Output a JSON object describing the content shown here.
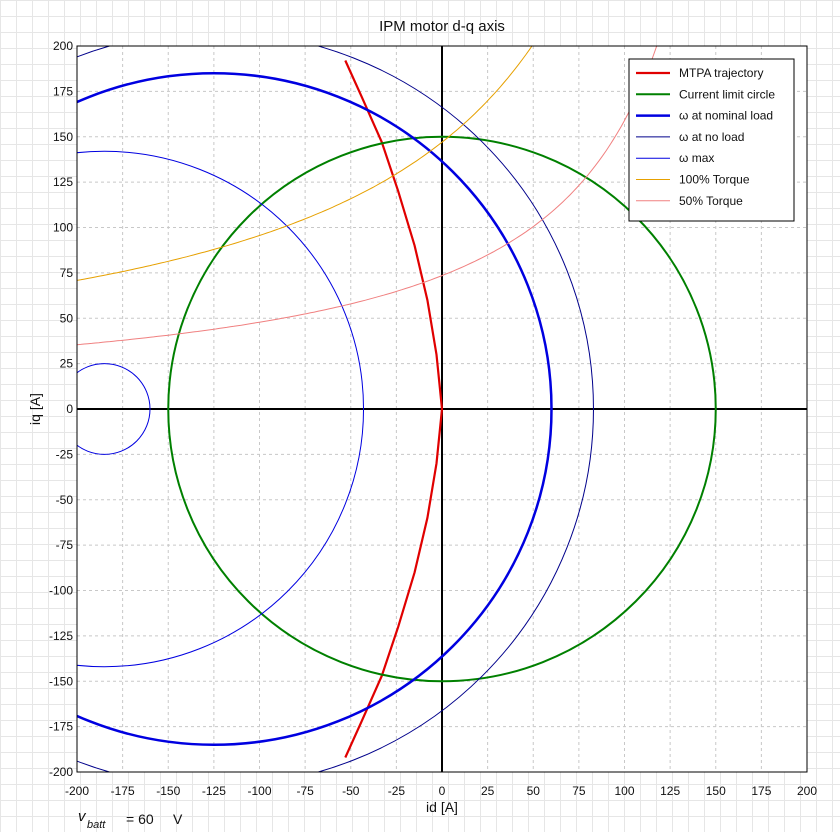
{
  "chart_data": {
    "type": "line",
    "title": "IPM motor d-q axis",
    "xlabel": "id [A]",
    "ylabel": "iq [A]",
    "xlim": [
      -200,
      200
    ],
    "ylim": [
      -200,
      200
    ],
    "xticks": [
      "-200",
      "-175",
      "-150",
      "-125",
      "-100",
      "-75",
      "-50",
      "-25",
      "0",
      "25",
      "50",
      "75",
      "100",
      "125",
      "150",
      "175",
      "200"
    ],
    "yticks": [
      "200",
      "175",
      "150",
      "125",
      "100",
      "75",
      "50",
      "25",
      "0",
      "-25",
      "-50",
      "-75",
      "-100",
      "-125",
      "-150",
      "-175",
      "-200"
    ],
    "grid": true,
    "legend_position": "top-right",
    "series": [
      {
        "name": "MTPA trajectory",
        "color": "#e00000",
        "kind": "curve",
        "points": [
          [
            -53,
            192
          ],
          [
            -44,
            172
          ],
          [
            -33,
            147
          ],
          [
            -24,
            120
          ],
          [
            -15,
            90
          ],
          [
            -8,
            60
          ],
          [
            -3,
            30
          ],
          [
            0,
            0
          ],
          [
            -3,
            -30
          ],
          [
            -8,
            -60
          ],
          [
            -15,
            -90
          ],
          [
            -24,
            -120
          ],
          [
            -33,
            -147
          ],
          [
            -44,
            -172
          ],
          [
            -53,
            -192
          ]
        ]
      },
      {
        "name": "Current limit circle",
        "color": "#008000",
        "kind": "circle",
        "center": [
          0,
          0
        ],
        "radius": 150
      },
      {
        "name": "ω at nominal load",
        "color": "#0000e0",
        "kind": "circle",
        "center": [
          -125,
          0
        ],
        "radius": 185
      },
      {
        "name": "ω at no load",
        "color": "#00008b",
        "kind": "circle",
        "center": [
          -125,
          0
        ],
        "radius": 208
      },
      {
        "name": "ω max",
        "color": "#0000e0",
        "kind": "circle",
        "center": [
          -185,
          0
        ],
        "radius": 142
      },
      {
        "name": "100% Torque",
        "color": "#e6a000",
        "kind": "hyperbola",
        "level": 147
      },
      {
        "name": "50% Torque",
        "color": "#f08080",
        "kind": "hyperbola",
        "level": 73.5
      }
    ],
    "extra_curves": [
      {
        "color": "#0000e0",
        "kind": "circle",
        "center": [
          -185,
          0
        ],
        "radius": 25
      }
    ]
  },
  "footer": {
    "var": "v",
    "sub": "batt",
    "eq": "= 60",
    "unit": "V"
  }
}
